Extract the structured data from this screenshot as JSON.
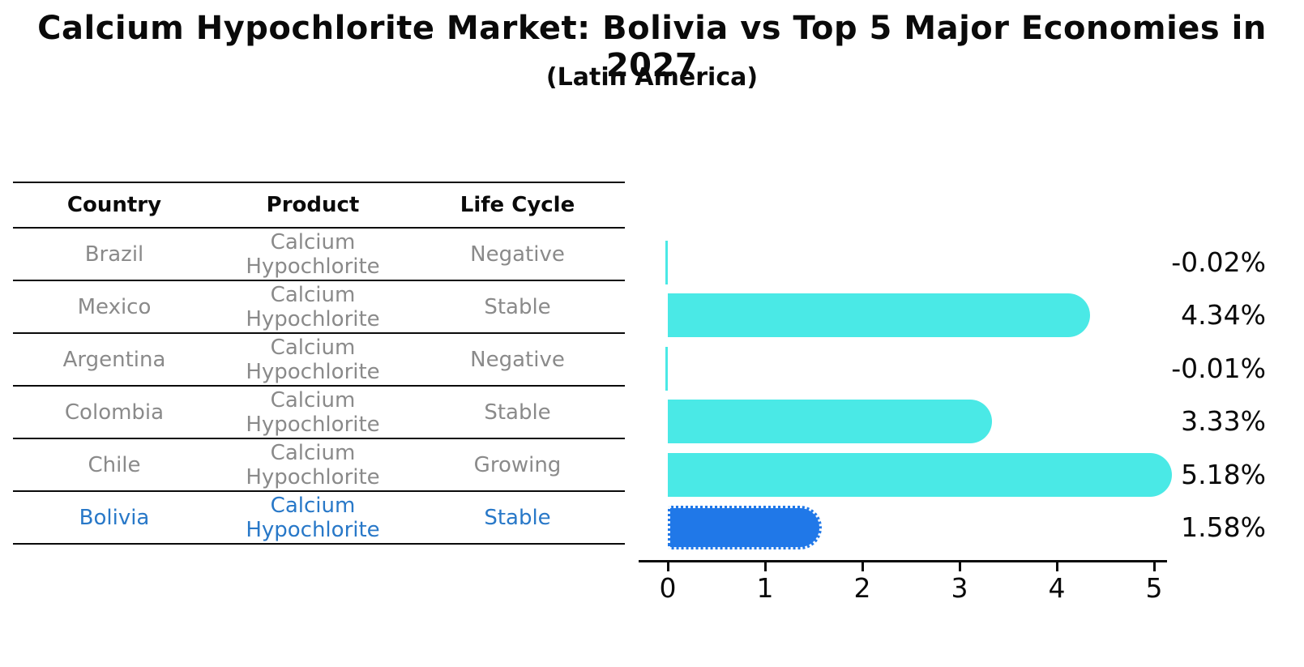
{
  "chart_data": {
    "type": "bar",
    "orientation": "horizontal",
    "title": "Calcium Hypochlorite Market: Bolivia vs Top 5 Major Economies in 2027",
    "subtitle": "(Latin America)",
    "categories": [
      "Brazil",
      "Mexico",
      "Argentina",
      "Colombia",
      "Chile",
      "Bolivia"
    ],
    "values": [
      -0.02,
      4.34,
      -0.01,
      3.33,
      5.18,
      1.58
    ],
    "value_labels": [
      "-0.02%",
      "4.34%",
      "-0.01%",
      "3.33%",
      "5.18%",
      "1.58%"
    ],
    "xticks": [
      "0",
      "1",
      "2",
      "3",
      "4",
      "5"
    ],
    "xlim": [
      -0.3,
      5.4
    ],
    "grid": false,
    "legend": "none",
    "bar_color": "#4AE9E6",
    "highlight_color": "#2078E8",
    "highlight_index": 5
  },
  "table": {
    "headers": [
      "Country",
      "Product",
      "Life Cycle"
    ],
    "rows": [
      {
        "country": "Brazil",
        "product": "Calcium Hypochlorite",
        "life_cycle": "Negative",
        "highlight": false
      },
      {
        "country": "Mexico",
        "product": "Calcium Hypochlorite",
        "life_cycle": "Stable",
        "highlight": false
      },
      {
        "country": "Argentina",
        "product": "Calcium Hypochlorite",
        "life_cycle": "Negative",
        "highlight": false
      },
      {
        "country": "Colombia",
        "product": "Calcium Hypochlorite",
        "life_cycle": "Stable",
        "highlight": false
      },
      {
        "country": "Chile",
        "product": "Calcium Hypochlorite",
        "life_cycle": "Growing",
        "highlight": false
      },
      {
        "country": "Bolivia",
        "product": "Calcium Hypochlorite",
        "life_cycle": "Stable",
        "highlight": true
      }
    ]
  },
  "colors": {
    "text_primary": "#0a0a0a",
    "text_muted": "#8a8a8a",
    "highlight_text": "#2878C8"
  }
}
